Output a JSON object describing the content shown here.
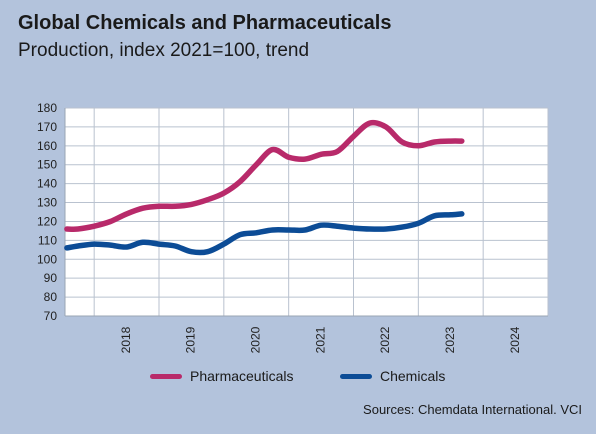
{
  "title": "Global Chemicals and Pharmaceuticals",
  "subtitle": "Production, index 2021=100, trend",
  "source": "Sources: Chemdata International. VCI",
  "colors": {
    "background": "#b3c3dc",
    "plot_background": "#ffffff",
    "grid": "#b9c2cf",
    "pharmaceuticals": "#b82a6a",
    "chemicals": "#0c4c96"
  },
  "chart_data": {
    "type": "line",
    "title": "Global Chemicals and Pharmaceuticals",
    "subtitle": "Production, index 2021=100, trend",
    "xlabel": "",
    "ylabel": "",
    "ylim": [
      70,
      180
    ],
    "yticks": [
      70,
      80,
      90,
      100,
      110,
      120,
      130,
      140,
      150,
      160,
      170,
      180
    ],
    "xlim": [
      2017.55,
      2025.0
    ],
    "xticks": [
      "2018",
      "2019",
      "2020",
      "2021",
      "2022",
      "2023",
      "2024"
    ],
    "grid": true,
    "legend_position": "bottom",
    "series": [
      {
        "name": "Pharmaceuticals",
        "color": "#b82a6a",
        "x": [
          2017.58,
          2017.75,
          2018.0,
          2018.25,
          2018.5,
          2018.75,
          2019.0,
          2019.25,
          2019.5,
          2019.75,
          2020.0,
          2020.25,
          2020.5,
          2020.75,
          2021.0,
          2021.25,
          2021.5,
          2021.75,
          2022.0,
          2022.25,
          2022.5,
          2022.75,
          2023.0,
          2023.25,
          2023.5,
          2023.67
        ],
        "y": [
          116,
          116,
          117.5,
          120,
          124,
          127,
          128,
          128,
          129,
          131.5,
          135,
          141,
          150,
          158,
          154,
          153,
          155.5,
          157,
          165,
          172,
          170,
          162,
          160,
          162,
          162.5,
          162.5
        ]
      },
      {
        "name": "Chemicals",
        "color": "#0c4c96",
        "x": [
          2017.58,
          2017.75,
          2018.0,
          2018.25,
          2018.5,
          2018.75,
          2019.0,
          2019.25,
          2019.5,
          2019.75,
          2020.0,
          2020.25,
          2020.5,
          2020.75,
          2021.0,
          2021.25,
          2021.5,
          2021.75,
          2022.0,
          2022.25,
          2022.5,
          2022.75,
          2023.0,
          2023.25,
          2023.5,
          2023.67
        ],
        "y": [
          106,
          107,
          108,
          107.5,
          106.5,
          109,
          108,
          107,
          104,
          104,
          108,
          113,
          114,
          115.5,
          115.5,
          115.5,
          118,
          117.5,
          116.5,
          116,
          116,
          117,
          119,
          123,
          123.5,
          124
        ]
      }
    ]
  }
}
